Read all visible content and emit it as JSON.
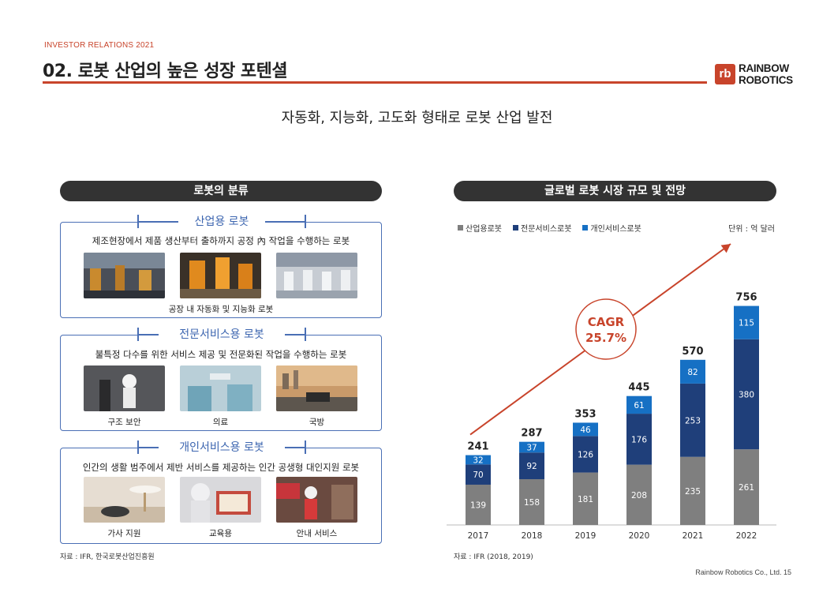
{
  "header": {
    "ir_label": "INVESTOR RELATIONS 2021",
    "title": "02. 로봇 산업의 높은 성장 포텐셜",
    "logo_mark": "rb",
    "logo_line1": "RAINBOW",
    "logo_line2": "ROBOTICS"
  },
  "subtitle": "자동화, 지능화, 고도화 형태로 로봇 산업 발전",
  "left": {
    "pill": "로봇의 분류",
    "categories": [
      {
        "title": "산업용 로봇",
        "desc": "제조현장에서 제품 생산부터 출하까지 공정 內 작업을 수행하는 로봇",
        "captions": [
          "공장 내 자동화 및 지능화 로봇"
        ]
      },
      {
        "title": "전문서비스용 로봇",
        "desc": "불특정 다수를 위한 서비스 제공 및 전문화된 작업을 수행하는 로봇",
        "captions": [
          "구조 보안",
          "의료",
          "국방"
        ]
      },
      {
        "title": "개인서비스용 로봇",
        "desc": "인간의 생활 범주에서 제반 서비스를 제공하는 인간 공생형 대인지원 로봇",
        "captions": [
          "가사 지원",
          "교육용",
          "안내 서비스"
        ]
      }
    ],
    "source": "자료 : IFR, 한국로봇산업진흥원"
  },
  "right": {
    "pill": "글로벌 로봇 시장 규모 및 전망",
    "unit": "단위 : 억 달러",
    "cagr_line1": "CAGR",
    "cagr_line2": "25.7%",
    "source": "자료 : IFR (2018, 2019)"
  },
  "chart_data": {
    "type": "bar",
    "stacked": true,
    "categories": [
      "2017",
      "2018",
      "2019",
      "2020",
      "2021",
      "2022"
    ],
    "series": [
      {
        "name": "산업용로봇",
        "values": [
          139,
          158,
          181,
          208,
          235,
          261
        ],
        "color": "#7f7f7f"
      },
      {
        "name": "전문서비스로봇",
        "values": [
          70,
          92,
          126,
          176,
          253,
          380
        ],
        "color": "#1f3f7a"
      },
      {
        "name": "개인서비스로봇",
        "values": [
          32,
          37,
          46,
          61,
          82,
          115
        ],
        "color": "#1670c4"
      }
    ],
    "totals": [
      241,
      287,
      353,
      445,
      570,
      756
    ],
    "legend_position": "top-left",
    "ylim": [
      0,
      800
    ]
  },
  "footer": "Rainbow Robotics Co., Ltd. 15"
}
